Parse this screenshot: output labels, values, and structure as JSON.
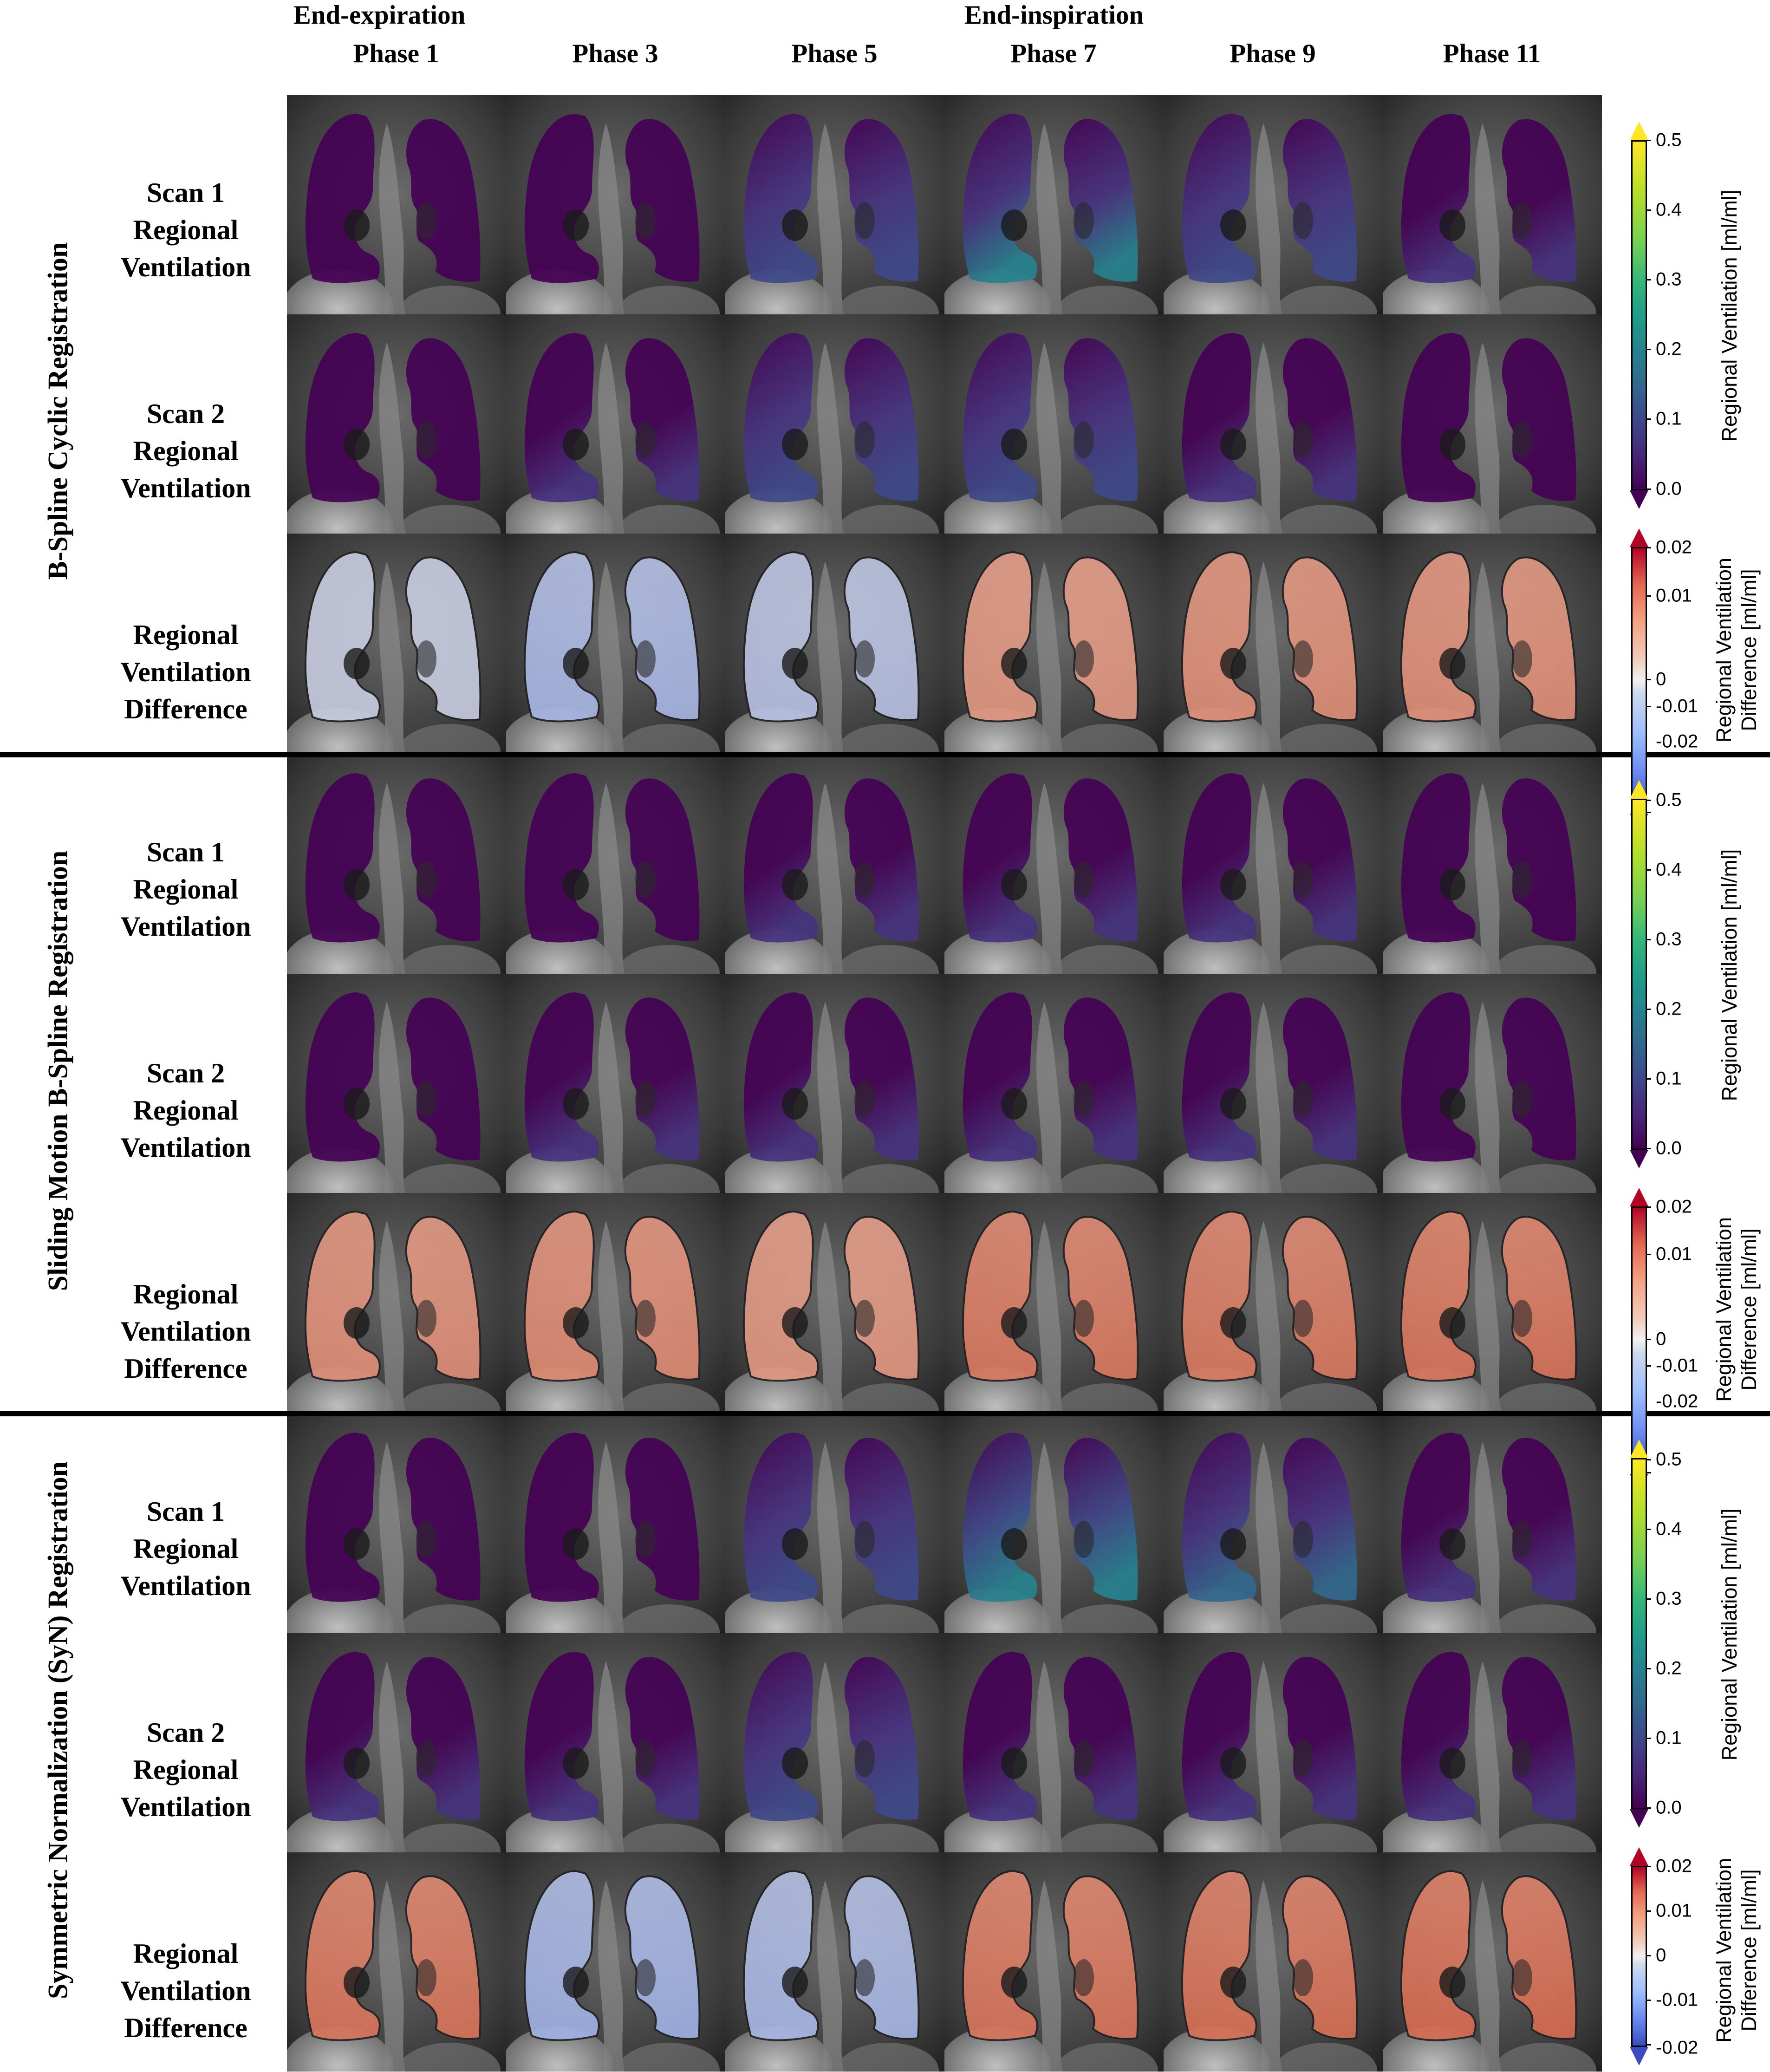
{
  "header": {
    "end_expiration": "End-expiration",
    "end_inspiration": "End-inspiration",
    "phases": [
      "Phase 1",
      "Phase 3",
      "Phase 5",
      "Phase 7",
      "Phase 9",
      "Phase 11"
    ]
  },
  "sections": [
    {
      "title": "B-Spline Cyclic Registration",
      "rows": [
        {
          "lines": [
            "Scan 1",
            "Regional",
            "Ventilation"
          ]
        },
        {
          "lines": [
            "Scan 2",
            "Regional",
            "Ventilation"
          ]
        },
        {
          "lines": [
            "Regional",
            "Ventilation",
            "Difference"
          ]
        }
      ]
    },
    {
      "title": "Sliding Motion B-Spline Registration",
      "rows": [
        {
          "lines": [
            "Scan 1",
            "Regional",
            "Ventilation"
          ]
        },
        {
          "lines": [
            "Scan 2",
            "Regional",
            "Ventilation"
          ]
        },
        {
          "lines": [
            "Regional",
            "Ventilation",
            "Difference"
          ]
        }
      ]
    },
    {
      "title": "Symmetric Normalization (SyN) Registration",
      "rows": [
        {
          "lines": [
            "Scan 1",
            "Regional",
            "Ventilation"
          ]
        },
        {
          "lines": [
            "Scan 2",
            "Regional",
            "Ventilation"
          ]
        },
        {
          "lines": [
            "Regional",
            "Ventilation",
            "Difference"
          ]
        }
      ]
    }
  ],
  "colorbars": {
    "ventilation": {
      "title": "Regional Ventilation [ml/ml]",
      "ticks": [
        "0.0",
        "0.1",
        "0.2",
        "0.3",
        "0.4",
        "0.5"
      ],
      "range": [
        0.0,
        0.5
      ],
      "colormap": "viridis"
    },
    "difference": {
      "title_line1": "Regional Ventilation",
      "title_line2": "Difference [ml/ml]",
      "ticks": [
        "-0.02",
        "-0.01",
        "0",
        "0.01",
        "0.02"
      ],
      "range": [
        -0.02,
        0.02
      ],
      "colormap": "coolwarm"
    }
  },
  "colors": {
    "viridis_low": "#440154",
    "viridis_high": "#fde725",
    "coolwarm_low": "#3b4cc0",
    "coolwarm_high": "#b40426"
  }
}
